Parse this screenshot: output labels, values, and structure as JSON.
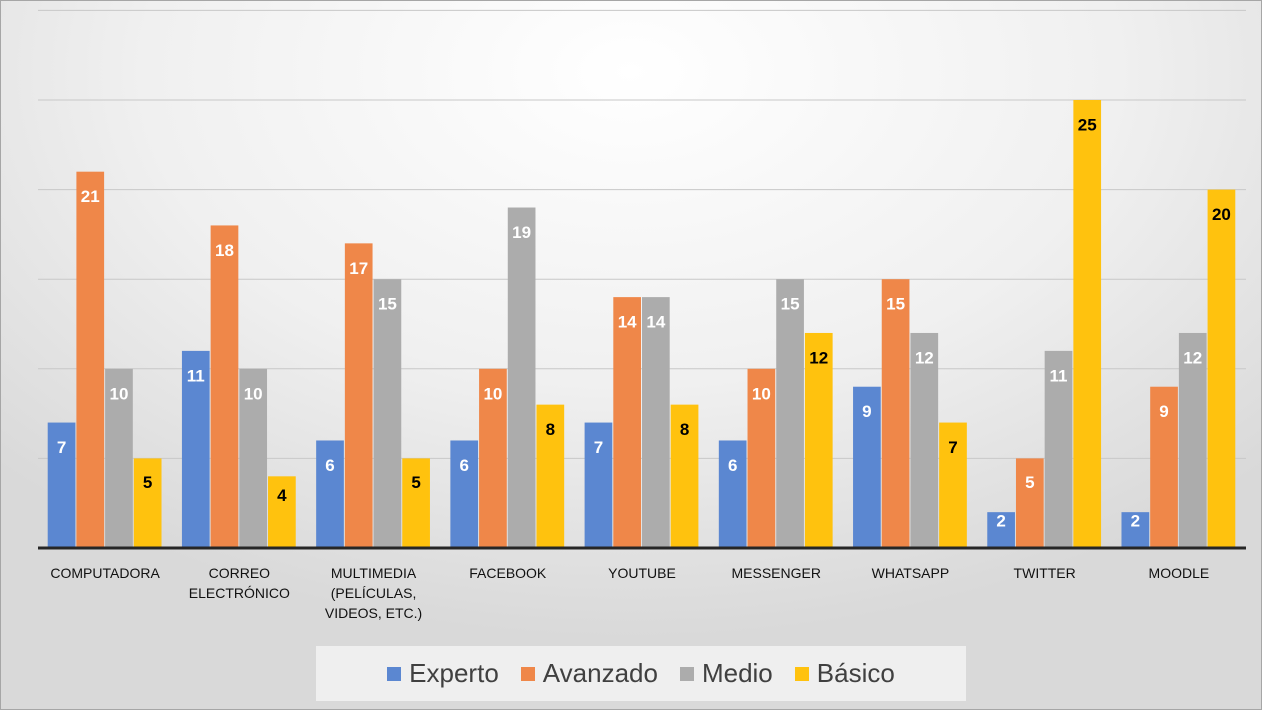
{
  "chart_data": {
    "type": "bar",
    "categories": [
      "COMPUTADORA",
      "CORREO ELECTRÓNICO",
      "MULTIMEDIA (PELÍCULAS, VIDEOS, ETC.)",
      "FACEBOOK",
      "YOUTUBE",
      "MESSENGER",
      "WHATSAPP",
      "TWITTER",
      "MOODLE"
    ],
    "series": [
      {
        "name": "Experto",
        "color": "#5b87d1",
        "values": [
          7,
          11,
          6,
          6,
          7,
          6,
          9,
          2,
          2
        ]
      },
      {
        "name": "Avanzado",
        "color": "#ef8749",
        "values": [
          21,
          18,
          17,
          10,
          14,
          10,
          15,
          5,
          9
        ]
      },
      {
        "name": "Medio",
        "color": "#acacac",
        "values": [
          10,
          10,
          15,
          19,
          14,
          15,
          12,
          11,
          12
        ]
      },
      {
        "name": "Básico",
        "color": "#ffc20e",
        "values": [
          5,
          4,
          5,
          8,
          8,
          12,
          7,
          25,
          20
        ]
      }
    ],
    "ylim": [
      0,
      30
    ],
    "yticks": [
      0,
      5,
      10,
      15,
      20,
      25,
      30
    ],
    "grid": true,
    "legend": "bottom"
  }
}
